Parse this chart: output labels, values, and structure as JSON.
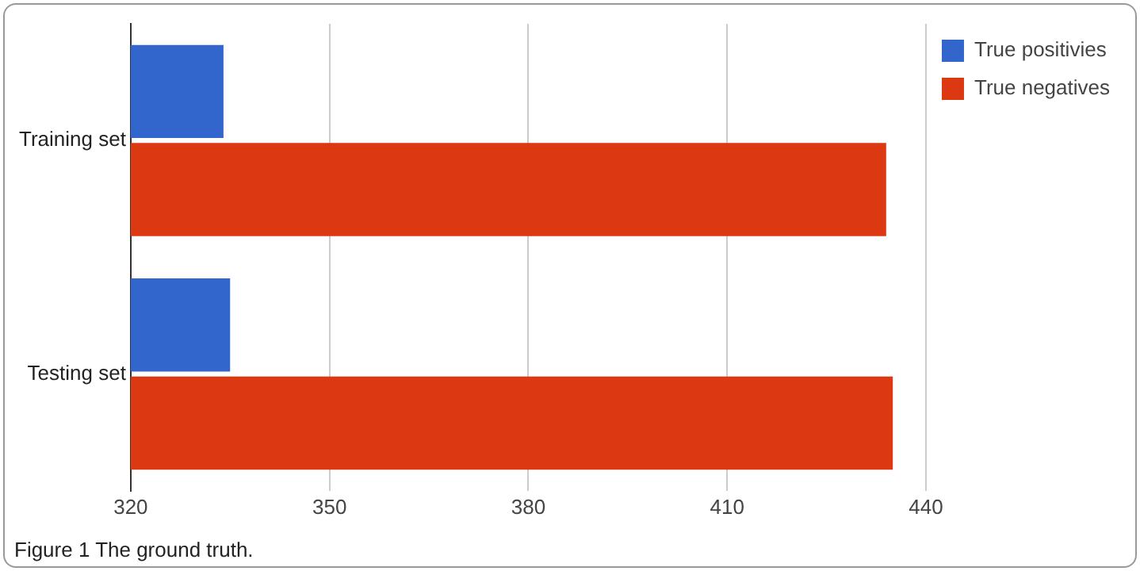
{
  "chart_data": {
    "type": "bar",
    "orientation": "horizontal",
    "categories": [
      "Training set",
      "Testing set"
    ],
    "series": [
      {
        "name": "True positivies",
        "color": "#3366cc",
        "values": [
          334,
          335
        ]
      },
      {
        "name": "True negatives",
        "color": "#dc3912",
        "values": [
          434,
          435
        ]
      }
    ],
    "xlim": [
      320,
      440
    ],
    "xticks": [
      320,
      350,
      380,
      410,
      440
    ],
    "grid": "x",
    "legend": "top right",
    "annotations": [
      "Figure 1 The ground truth."
    ]
  }
}
